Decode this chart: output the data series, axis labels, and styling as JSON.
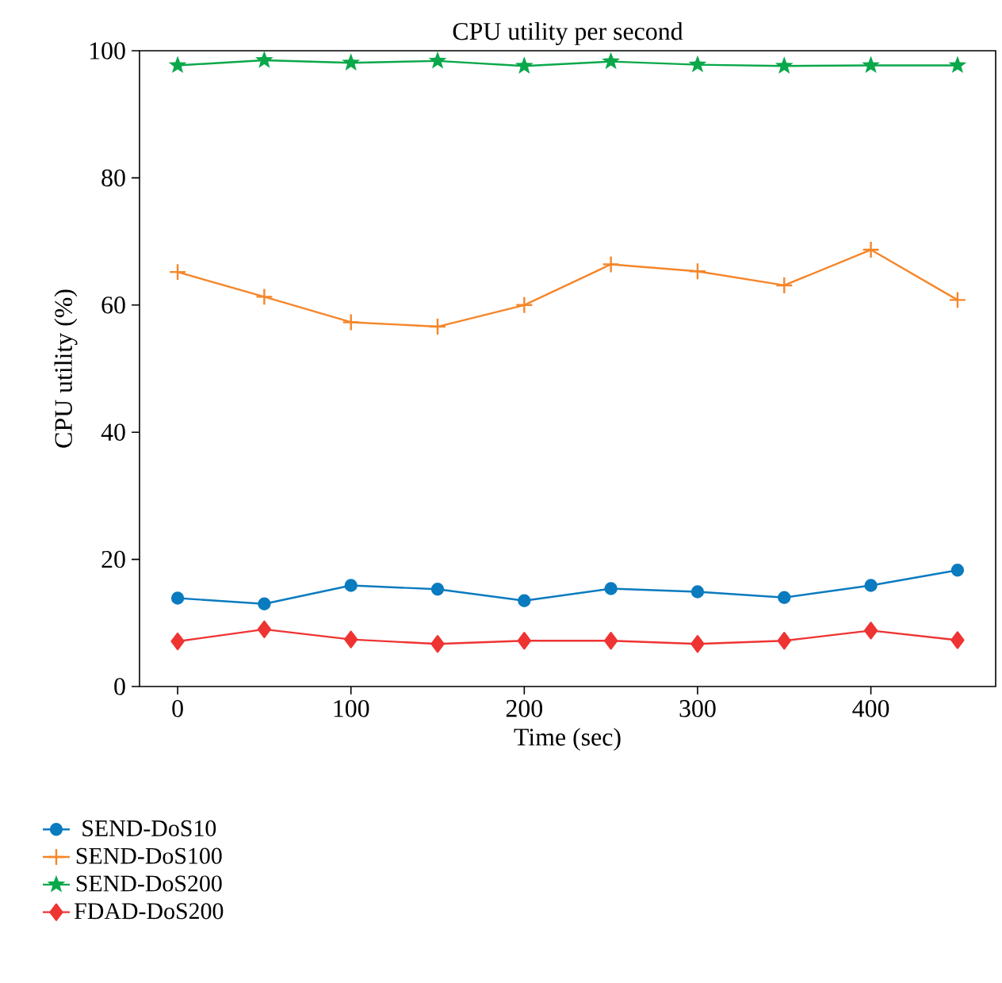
{
  "chart_data": {
    "type": "line",
    "title": "CPU utility per second",
    "xlabel": "Time (sec)",
    "ylabel": "CPU utility (%)",
    "x": [
      0,
      50,
      100,
      150,
      200,
      250,
      300,
      350,
      400,
      450
    ],
    "xlim": [
      -22,
      472
    ],
    "xticks": [
      0,
      100,
      200,
      300,
      400
    ],
    "ylim": [
      0,
      100
    ],
    "yticks": [
      0,
      20,
      40,
      60,
      80,
      100
    ],
    "legend": "bottom",
    "grid": false,
    "line_style": "solid",
    "series": [
      {
        "name": "SEND-DoS10",
        "color": "#0a7bbf",
        "marker": "circle",
        "values": [
          13.9,
          13.0,
          15.9,
          15.3,
          13.5,
          15.4,
          14.9,
          14.0,
          15.9,
          18.3
        ]
      },
      {
        "name": "SEND-DoS100",
        "color": "#f5862a",
        "marker": "cross",
        "values": [
          65.2,
          61.3,
          57.3,
          56.6,
          60.0,
          66.4,
          65.3,
          63.1,
          68.7,
          60.8
        ]
      },
      {
        "name": "SEND-DoS200",
        "color": "#0aa84a",
        "marker": "star",
        "values": [
          97.7,
          98.5,
          98.1,
          98.4,
          97.6,
          98.3,
          97.8,
          97.6,
          97.7,
          97.7
        ]
      },
      {
        "name": "FDAD-DoS200",
        "color": "#ee3433",
        "marker": "diamond",
        "values": [
          7.1,
          9.0,
          7.4,
          6.7,
          7.2,
          7.2,
          6.7,
          7.2,
          8.8,
          7.3
        ]
      }
    ]
  }
}
